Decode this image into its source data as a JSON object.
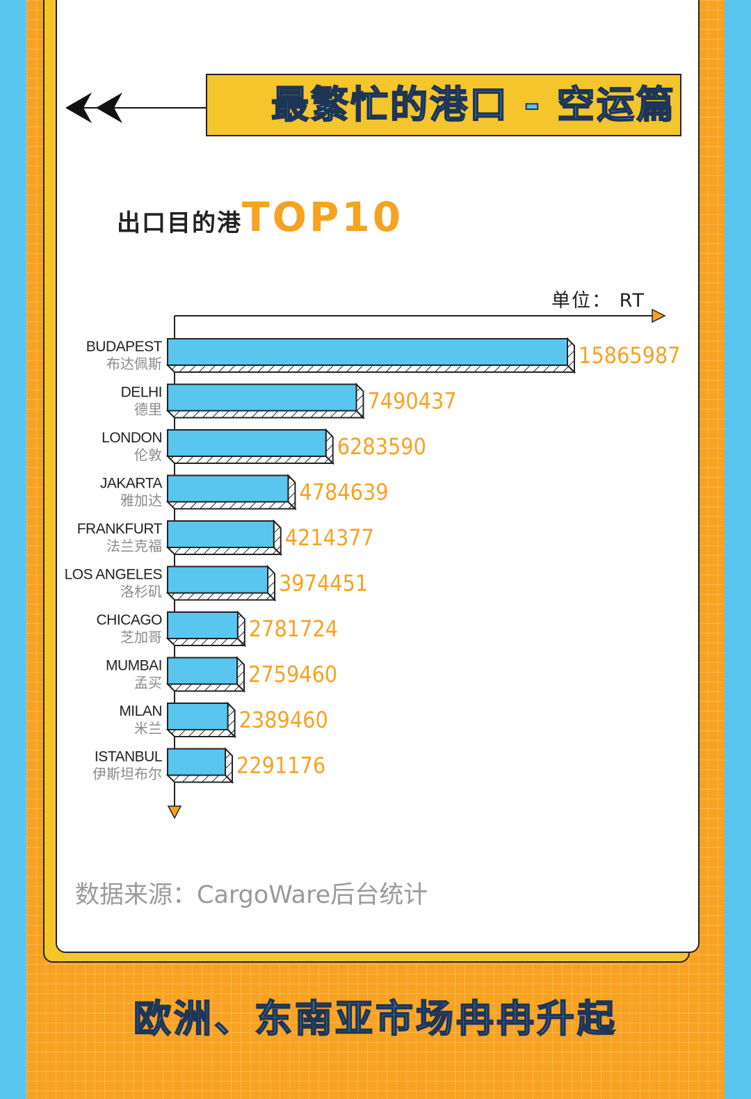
{
  "header": {
    "title": "最繁忙的港口 - 空运篇"
  },
  "subtitle": {
    "prefix": "出口目的港",
    "highlight": "TOP10"
  },
  "unit_label": "单位：  RT",
  "source": "数据来源：CargoWare后台统计",
  "footer": "欧洲、东南亚市场冉冉升起",
  "colors": {
    "bar": "#58c6ef",
    "value": "#f7a221",
    "frame": "#f7a221",
    "card_shadow": "#f5c52c",
    "background": "#58c6ef"
  },
  "chart_data": {
    "type": "bar",
    "orientation": "horizontal",
    "unit": "RT",
    "categories": [
      {
        "en": "BUDAPEST",
        "cn": "布达佩斯"
      },
      {
        "en": "DELHI",
        "cn": "德里"
      },
      {
        "en": "LONDON",
        "cn": "伦敦"
      },
      {
        "en": "JAKARTA",
        "cn": "雅加达"
      },
      {
        "en": "FRANKFURT",
        "cn": "法兰克福"
      },
      {
        "en": "LOS ANGELES",
        "cn": "洛杉矶"
      },
      {
        "en": "CHICAGO",
        "cn": "芝加哥"
      },
      {
        "en": "MUMBAI",
        "cn": "孟买"
      },
      {
        "en": "MILAN",
        "cn": "米兰"
      },
      {
        "en": "ISTANBUL",
        "cn": "伊斯坦布尔"
      }
    ],
    "values": [
      15865987,
      7490437,
      6283590,
      4784639,
      4214377,
      3974451,
      2781724,
      2759460,
      2389460,
      2291176
    ],
    "labels": [
      "15865987",
      "7490437",
      "6283590",
      "4784639",
      "4214377",
      "3974451",
      "2781724",
      "2759460",
      "2389460",
      "2291176"
    ]
  }
}
